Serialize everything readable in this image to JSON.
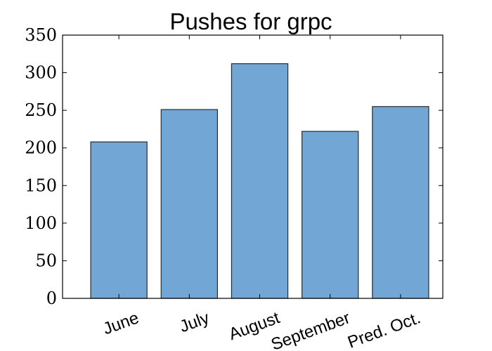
{
  "chart_data": {
    "type": "bar",
    "title": "Pushes for grpc",
    "xlabel": "",
    "ylabel": "",
    "categories": [
      "June",
      "July",
      "August",
      "September",
      "Pred. Oct."
    ],
    "values": [
      208,
      251,
      312,
      222,
      255
    ],
    "ylim": [
      0,
      350
    ],
    "yticks": [
      0,
      50,
      100,
      150,
      200,
      250,
      300,
      350
    ],
    "grid": false,
    "legend": "none",
    "bar_color": "#72a6d5",
    "edge_color": "#2b2b2b"
  }
}
